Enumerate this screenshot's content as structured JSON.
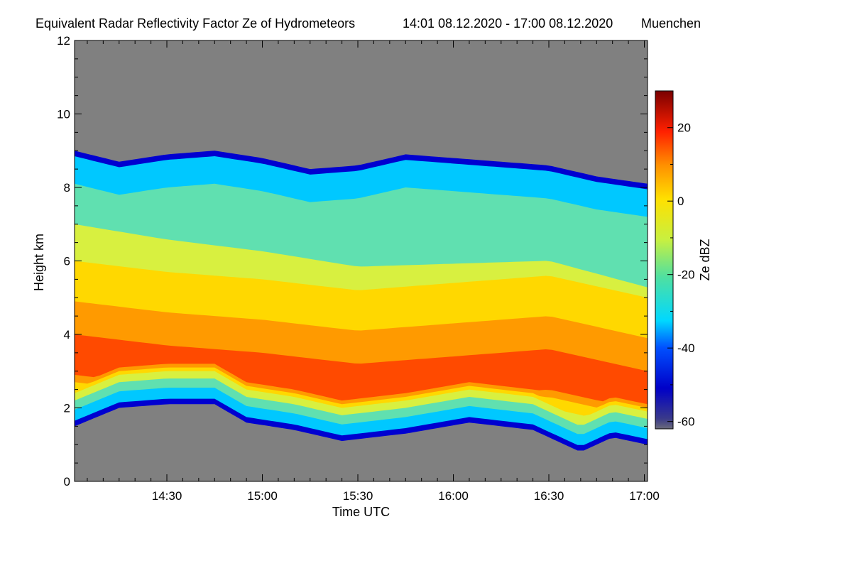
{
  "chart_data": {
    "type": "heatmap",
    "title": "Equivalent Radar Reflectivity Factor Ze of Hydrometeors",
    "time_range": "14:01 08.12.2020 - 17:00 08.12.2020",
    "location": "Muenchen",
    "xlabel": "Time UTC",
    "ylabel": "Height km",
    "x_ticks": [
      "14:30",
      "15:00",
      "15:30",
      "16:00",
      "16:30",
      "17:00"
    ],
    "x_tick_minutes": [
      870,
      900,
      930,
      960,
      990,
      1020
    ],
    "xlim_minutes": [
      841,
      1021
    ],
    "y_ticks": [
      0,
      2,
      4,
      6,
      8,
      10,
      12
    ],
    "ylim": [
      0,
      12
    ],
    "colorbar": {
      "label": "Ze dBZ",
      "ticks": [
        -60,
        -40,
        -20,
        0,
        20
      ],
      "range": [
        -62,
        30
      ]
    },
    "no_echo_color": "#808080",
    "echo_top_km": [
      {
        "t": 841,
        "h": 9.0
      },
      {
        "t": 855,
        "h": 8.7
      },
      {
        "t": 870,
        "h": 8.9
      },
      {
        "t": 885,
        "h": 9.0
      },
      {
        "t": 900,
        "h": 8.8
      },
      {
        "t": 915,
        "h": 8.5
      },
      {
        "t": 930,
        "h": 8.6
      },
      {
        "t": 945,
        "h": 8.9
      },
      {
        "t": 960,
        "h": 8.8
      },
      {
        "t": 975,
        "h": 8.7
      },
      {
        "t": 990,
        "h": 8.6
      },
      {
        "t": 1005,
        "h": 8.3
      },
      {
        "t": 1021,
        "h": 8.1
      }
    ],
    "echo_base_km": [
      {
        "t": 841,
        "h": 1.5
      },
      {
        "t": 855,
        "h": 2.0
      },
      {
        "t": 870,
        "h": 2.1
      },
      {
        "t": 885,
        "h": 2.1
      },
      {
        "t": 895,
        "h": 1.6
      },
      {
        "t": 910,
        "h": 1.4
      },
      {
        "t": 925,
        "h": 1.1
      },
      {
        "t": 945,
        "h": 1.3
      },
      {
        "t": 965,
        "h": 1.6
      },
      {
        "t": 985,
        "h": 1.4
      },
      {
        "t": 1000,
        "h": 0.8
      },
      {
        "t": 1010,
        "h": 1.2
      },
      {
        "t": 1021,
        "h": 1.0
      }
    ],
    "reflectivity_max_height_km": [
      {
        "t": 841,
        "h": 3.2
      },
      {
        "t": 870,
        "h": 2.9
      },
      {
        "t": 900,
        "h": 2.7
      },
      {
        "t": 930,
        "h": 2.4
      },
      {
        "t": 960,
        "h": 2.6
      },
      {
        "t": 990,
        "h": 2.8
      },
      {
        "t": 1021,
        "h": 2.2
      }
    ],
    "reflectivity_peak_dbz": 15
  }
}
